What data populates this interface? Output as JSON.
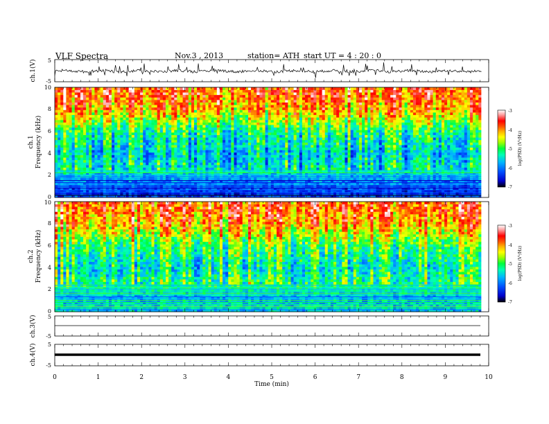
{
  "header": {
    "title": "VLF  Spectra",
    "date": "Nov.3  , 2013",
    "station": "station= ATH",
    "start": "start  UT  =   4 : 20 : 0"
  },
  "colors": {
    "trace": "#000000",
    "scale": [
      "#000000",
      "#0000cc",
      "#0050ff",
      "#00b4ff",
      "#00ffb4",
      "#00ff3c",
      "#a0ff00",
      "#ffff00",
      "#ffb400",
      "#ff5000",
      "#ff0000",
      "#ffa0a0",
      "#ffffff"
    ]
  },
  "chart_data": [
    {
      "type": "line",
      "name": "ch1-waveform",
      "ylabel": "ch.1(V)",
      "ylim": [
        -5,
        5
      ],
      "yticks": [
        "5",
        "-5"
      ],
      "x_range_min": [
        0,
        9.83
      ],
      "baseline": -0.2,
      "spike_max": 3.2
    },
    {
      "type": "heatmap",
      "name": "ch1-spectrogram",
      "ylabel_channel": "ch.1",
      "ylabel": "Frequency  (kHz)",
      "ylim": [
        0,
        10
      ],
      "yticks": [
        "0",
        "2",
        "4",
        "6",
        "8",
        "10"
      ],
      "x_range_min": [
        0,
        9.83
      ],
      "colorbar": {
        "label": "log(PSD) (V²/Hz)",
        "range": [
          -7,
          -3
        ],
        "ticks": [
          "-3",
          "-4",
          "-5",
          "-6",
          "-7"
        ]
      },
      "profile": [
        {
          "f_khz": 0.5,
          "log_psd": -6.3
        },
        {
          "f_khz": 1.5,
          "log_psd": -6.0
        },
        {
          "f_khz": 2.5,
          "log_psd": -5.4
        },
        {
          "f_khz": 4.0,
          "log_psd": -5.6
        },
        {
          "f_khz": 6.0,
          "log_psd": -5.2
        },
        {
          "f_khz": 8.0,
          "log_psd": -4.1
        },
        {
          "f_khz": 9.5,
          "log_psd": -3.8
        }
      ]
    },
    {
      "type": "heatmap",
      "name": "ch2-spectrogram",
      "ylabel_channel": "ch.2",
      "ylabel": "Frequency  (kHz)",
      "ylim": [
        0,
        10
      ],
      "yticks": [
        "0",
        "2",
        "4",
        "6",
        "8",
        "10"
      ],
      "x_range_min": [
        0,
        9.83
      ],
      "colorbar": {
        "label": "log(PSD) (V²/Hz)",
        "range": [
          -7,
          -3
        ],
        "ticks": [
          "-3",
          "-4",
          "-5",
          "-6",
          "-7"
        ]
      },
      "profile": [
        {
          "f_khz": 0.5,
          "log_psd": -5.6
        },
        {
          "f_khz": 1.5,
          "log_psd": -5.7
        },
        {
          "f_khz": 2.5,
          "log_psd": -5.0
        },
        {
          "f_khz": 4.0,
          "log_psd": -5.3
        },
        {
          "f_khz": 6.0,
          "log_psd": -4.9
        },
        {
          "f_khz": 8.0,
          "log_psd": -4.0
        },
        {
          "f_khz": 9.5,
          "log_psd": -3.7
        }
      ]
    },
    {
      "type": "line",
      "name": "ch3-waveform",
      "ylabel": "ch.3(V)",
      "ylim": [
        -5,
        5
      ],
      "yticks": [
        "5",
        "-5"
      ],
      "x_range_min": [
        0,
        9.83
      ],
      "baseline": 0
    },
    {
      "type": "line",
      "name": "ch4-waveform",
      "ylabel": "ch.4(V)",
      "ylim": [
        -5,
        5
      ],
      "yticks": [
        "5",
        "-5"
      ],
      "x_range_min": [
        0,
        9.83
      ],
      "baseline": 0
    }
  ],
  "x_axis": {
    "label": "Time  (min)",
    "range": [
      0,
      10
    ],
    "ticks": [
      "0",
      "1",
      "2",
      "3",
      "4",
      "5",
      "6",
      "7",
      "8",
      "9",
      "10"
    ]
  }
}
